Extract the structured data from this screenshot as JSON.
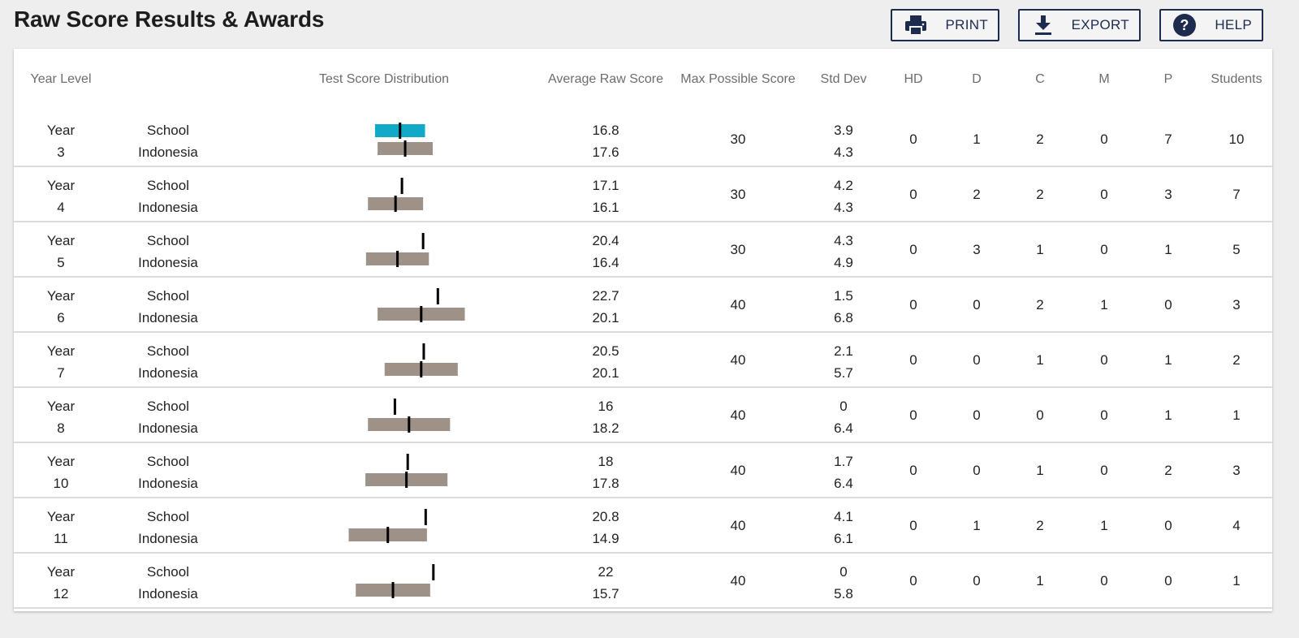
{
  "page": {
    "title": "Raw Score Results & Awards"
  },
  "toolbar": {
    "print_label": "PRINT",
    "export_label": "EXPORT",
    "help_label": "HELP",
    "print_icon": "printer-icon",
    "export_icon": "download-icon",
    "help_icon": "question-circle-icon"
  },
  "colors": {
    "school_bar": "#10a9c8",
    "indonesia_bar": "#9d9188",
    "marker": "#000000",
    "button_border": "#1d2b4f"
  },
  "table": {
    "headers": {
      "year_level": "Year Level",
      "distribution": "Test Score Distribution",
      "avg": "Average Raw Score",
      "max": "Max Possible Score",
      "sd": "Std Dev",
      "hd": "HD",
      "d": "D",
      "c": "C",
      "m": "M",
      "p": "P",
      "students": "Students"
    },
    "rows": [
      {
        "year": "Year",
        "num": "3",
        "school": "School",
        "country": "Indonesia",
        "avg_school": "16.8",
        "avg_country": "17.6",
        "max": "30",
        "sd_school": "3.9",
        "sd_country": "4.3",
        "hd": "0",
        "d": "1",
        "c": "2",
        "m": "0",
        "p": "7",
        "students": "10",
        "school_bar": true
      },
      {
        "year": "Year",
        "num": "4",
        "school": "School",
        "country": "Indonesia",
        "avg_school": "17.1",
        "avg_country": "16.1",
        "max": "30",
        "sd_school": "4.2",
        "sd_country": "4.3",
        "hd": "0",
        "d": "2",
        "c": "2",
        "m": "0",
        "p": "3",
        "students": "7",
        "school_bar": false
      },
      {
        "year": "Year",
        "num": "5",
        "school": "School",
        "country": "Indonesia",
        "avg_school": "20.4",
        "avg_country": "16.4",
        "max": "30",
        "sd_school": "4.3",
        "sd_country": "4.9",
        "hd": "0",
        "d": "3",
        "c": "1",
        "m": "0",
        "p": "1",
        "students": "5",
        "school_bar": false
      },
      {
        "year": "Year",
        "num": "6",
        "school": "School",
        "country": "Indonesia",
        "avg_school": "22.7",
        "avg_country": "20.1",
        "max": "40",
        "sd_school": "1.5",
        "sd_country": "6.8",
        "hd": "0",
        "d": "0",
        "c": "2",
        "m": "1",
        "p": "0",
        "students": "3",
        "school_bar": false
      },
      {
        "year": "Year",
        "num": "7",
        "school": "School",
        "country": "Indonesia",
        "avg_school": "20.5",
        "avg_country": "20.1",
        "max": "40",
        "sd_school": "2.1",
        "sd_country": "5.7",
        "hd": "0",
        "d": "0",
        "c": "1",
        "m": "0",
        "p": "1",
        "students": "2",
        "school_bar": false
      },
      {
        "year": "Year",
        "num": "8",
        "school": "School",
        "country": "Indonesia",
        "avg_school": "16",
        "avg_country": "18.2",
        "max": "40",
        "sd_school": "0",
        "sd_country": "6.4",
        "hd": "0",
        "d": "0",
        "c": "0",
        "m": "0",
        "p": "1",
        "students": "1",
        "school_bar": false
      },
      {
        "year": "Year",
        "num": "10",
        "school": "School",
        "country": "Indonesia",
        "avg_school": "18",
        "avg_country": "17.8",
        "max": "40",
        "sd_school": "1.7",
        "sd_country": "6.4",
        "hd": "0",
        "d": "0",
        "c": "1",
        "m": "0",
        "p": "2",
        "students": "3",
        "school_bar": false
      },
      {
        "year": "Year",
        "num": "11",
        "school": "School",
        "country": "Indonesia",
        "avg_school": "20.8",
        "avg_country": "14.9",
        "max": "40",
        "sd_school": "4.1",
        "sd_country": "6.1",
        "hd": "0",
        "d": "1",
        "c": "2",
        "m": "1",
        "p": "0",
        "students": "4",
        "school_bar": false
      },
      {
        "year": "Year",
        "num": "12",
        "school": "School",
        "country": "Indonesia",
        "avg_school": "22",
        "avg_country": "15.7",
        "max": "40",
        "sd_school": "0",
        "sd_country": "5.8",
        "hd": "0",
        "d": "0",
        "c": "1",
        "m": "0",
        "p": "0",
        "students": "1",
        "school_bar": false
      }
    ]
  }
}
